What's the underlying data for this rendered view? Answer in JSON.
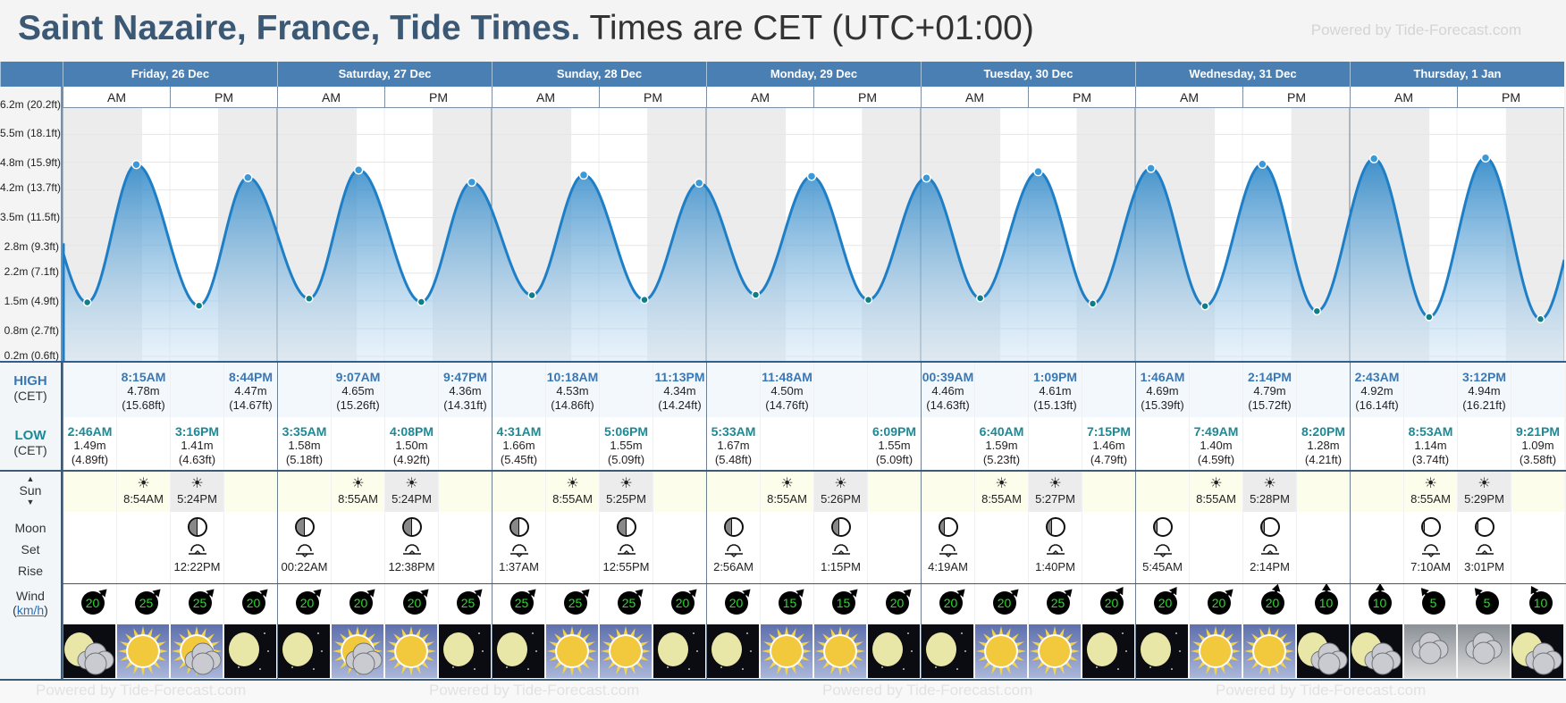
{
  "title": {
    "place": "Saint Nazaire, France, Tide Times.",
    "tz": "Times are CET (UTC+01:00)"
  },
  "powered_by": "Powered by Tide-Forecast.com",
  "periods": [
    "AM",
    "PM"
  ],
  "labels": {
    "high": "HIGH",
    "low": "LOW",
    "cet": "(CET)",
    "sun": "Sun",
    "moon": "Moon",
    "set": "Set",
    "rise": "Rise",
    "wind": "Wind",
    "unit": "km/h"
  },
  "chart": {
    "y_labels": [
      {
        "m": 0.2,
        "text": "0.2m (0.6ft)"
      },
      {
        "m": 0.8,
        "text": "0.8m (2.7ft)"
      },
      {
        "m": 1.5,
        "text": "1.5m (4.9ft)"
      },
      {
        "m": 2.2,
        "text": "2.2m (7.1ft)"
      },
      {
        "m": 2.8,
        "text": "2.8m (9.3ft)"
      },
      {
        "m": 3.5,
        "text": "3.5m (11.5ft)"
      },
      {
        "m": 4.2,
        "text": "4.2m (13.7ft)"
      },
      {
        "m": 4.8,
        "text": "4.8m (15.9ft)"
      },
      {
        "m": 5.5,
        "text": "5.5m (18.1ft)"
      },
      {
        "m": 6.2,
        "text": "6.2m (20.2ft)"
      }
    ],
    "colors": {
      "line": "#1e7fc6",
      "high_dot": "#3a9ad9",
      "low_dot": "#0e7f86"
    }
  },
  "days": [
    {
      "label": "Friday, 26 Dec",
      "high": [
        {
          "time": "8:15AM",
          "m": "4.78m",
          "ft": "(15.68ft)"
        },
        {
          "time": "8:44PM",
          "m": "4.47m",
          "ft": "(14.67ft)"
        }
      ],
      "low": [
        {
          "time": "2:46AM",
          "m": "1.49m",
          "ft": "(4.89ft)"
        },
        {
          "time": "3:16PM",
          "m": "1.41m",
          "ft": "(4.63ft)"
        }
      ],
      "sun": {
        "rise": "8:54AM",
        "set": "5:24PM"
      },
      "moon_shade": 0.5,
      "moon": [
        {
          "time": "12:22PM",
          "event": "rise"
        }
      ],
      "wind": [
        {
          "speed": "20",
          "dir_deg": 225
        },
        {
          "speed": "25",
          "dir_deg": 225
        },
        {
          "speed": "25",
          "dir_deg": 225
        },
        {
          "speed": "20",
          "dir_deg": 225
        }
      ],
      "weather": [
        "night-cloudy",
        "sunny",
        "sunny-cloudy",
        "night-clear"
      ]
    },
    {
      "label": "Saturday, 27 Dec",
      "high": [
        {
          "time": "9:07AM",
          "m": "4.65m",
          "ft": "(15.26ft)"
        },
        {
          "time": "9:47PM",
          "m": "4.36m",
          "ft": "(14.31ft)"
        }
      ],
      "low": [
        {
          "time": "3:35AM",
          "m": "1.58m",
          "ft": "(5.18ft)"
        },
        {
          "time": "4:08PM",
          "m": "1.50m",
          "ft": "(4.92ft)"
        }
      ],
      "sun": {
        "rise": "8:55AM",
        "set": "5:24PM"
      },
      "moon_shade": 0.5,
      "moon": [
        {
          "time": "00:22AM",
          "event": "set"
        },
        {
          "time": "12:38PM",
          "event": "rise"
        }
      ],
      "wind": [
        {
          "speed": "20",
          "dir_deg": 225
        },
        {
          "speed": "20",
          "dir_deg": 225
        },
        {
          "speed": "20",
          "dir_deg": 225
        },
        {
          "speed": "25",
          "dir_deg": 225
        }
      ],
      "weather": [
        "night-clear",
        "sunny-cloudy",
        "sunny",
        "night-clear"
      ]
    },
    {
      "label": "Sunday, 28 Dec",
      "high": [
        {
          "time": "10:18AM",
          "m": "4.53m",
          "ft": "(14.86ft)"
        },
        {
          "time": "11:13PM",
          "m": "4.34m",
          "ft": "(14.24ft)"
        }
      ],
      "low": [
        {
          "time": "4:31AM",
          "m": "1.66m",
          "ft": "(5.45ft)"
        },
        {
          "time": "5:06PM",
          "m": "1.55m",
          "ft": "(5.09ft)"
        }
      ],
      "sun": {
        "rise": "8:55AM",
        "set": "5:25PM"
      },
      "moon_shade": 0.5,
      "moon": [
        {
          "time": "1:37AM",
          "event": "set"
        },
        {
          "time": "12:55PM",
          "event": "rise"
        }
      ],
      "wind": [
        {
          "speed": "25",
          "dir_deg": 225
        },
        {
          "speed": "25",
          "dir_deg": 225
        },
        {
          "speed": "25",
          "dir_deg": 225
        },
        {
          "speed": "20",
          "dir_deg": 225
        }
      ],
      "weather": [
        "night-clear",
        "sunny",
        "sunny",
        "night-clear"
      ]
    },
    {
      "label": "Monday, 29 Dec",
      "high": [
        {
          "time": "11:48AM",
          "m": "4.50m",
          "ft": "(14.76ft)"
        }
      ],
      "low": [
        {
          "time": "5:33AM",
          "m": "1.67m",
          "ft": "(5.48ft)"
        },
        {
          "time": "6:09PM",
          "m": "1.55m",
          "ft": "(5.09ft)"
        }
      ],
      "sun": {
        "rise": "8:55AM",
        "set": "5:26PM"
      },
      "moon_shade": 0.4,
      "moon": [
        {
          "time": "2:56AM",
          "event": "set"
        },
        {
          "time": "1:15PM",
          "event": "rise"
        }
      ],
      "wind": [
        {
          "speed": "20",
          "dir_deg": 225
        },
        {
          "speed": "15",
          "dir_deg": 225
        },
        {
          "speed": "15",
          "dir_deg": 225
        },
        {
          "speed": "20",
          "dir_deg": 225
        }
      ],
      "weather": [
        "night-clear",
        "sunny",
        "sunny",
        "night-clear"
      ]
    },
    {
      "label": "Tuesday, 30 Dec",
      "high": [
        {
          "time": "00:39AM",
          "m": "4.46m",
          "ft": "(14.63ft)"
        },
        {
          "time": "1:09PM",
          "m": "4.61m",
          "ft": "(15.13ft)"
        }
      ],
      "low": [
        {
          "time": "6:40AM",
          "m": "1.59m",
          "ft": "(5.23ft)"
        },
        {
          "time": "7:15PM",
          "m": "1.46m",
          "ft": "(4.79ft)"
        }
      ],
      "sun": {
        "rise": "8:55AM",
        "set": "5:27PM"
      },
      "moon_shade": 0.3,
      "moon": [
        {
          "time": "4:19AM",
          "event": "set"
        },
        {
          "time": "1:40PM",
          "event": "rise"
        }
      ],
      "wind": [
        {
          "speed": "20",
          "dir_deg": 225
        },
        {
          "speed": "20",
          "dir_deg": 225
        },
        {
          "speed": "25",
          "dir_deg": 225
        },
        {
          "speed": "20",
          "dir_deg": 215
        }
      ],
      "weather": [
        "night-clear",
        "sunny",
        "sunny",
        "night-clear"
      ]
    },
    {
      "label": "Wednesday, 31 Dec",
      "high": [
        {
          "time": "1:46AM",
          "m": "4.69m",
          "ft": "(15.39ft)"
        },
        {
          "time": "2:14PM",
          "m": "4.79m",
          "ft": "(15.72ft)"
        }
      ],
      "low": [
        {
          "time": "7:49AM",
          "m": "1.40m",
          "ft": "(4.59ft)"
        },
        {
          "time": "8:20PM",
          "m": "1.28m",
          "ft": "(4.21ft)"
        }
      ],
      "sun": {
        "rise": "8:55AM",
        "set": "5:28PM"
      },
      "moon_shade": 0.2,
      "moon": [
        {
          "time": "5:45AM",
          "event": "set"
        },
        {
          "time": "2:14PM",
          "event": "rise"
        }
      ],
      "wind": [
        {
          "speed": "20",
          "dir_deg": 215
        },
        {
          "speed": "20",
          "dir_deg": 225
        },
        {
          "speed": "20",
          "dir_deg": 195
        },
        {
          "speed": "10",
          "dir_deg": 180
        }
      ],
      "weather": [
        "night-clear",
        "sunny",
        "sunny",
        "night-cloudy"
      ]
    },
    {
      "label": "Thursday, 1 Jan",
      "high": [
        {
          "time": "2:43AM",
          "m": "4.92m",
          "ft": "(16.14ft)"
        },
        {
          "time": "3:12PM",
          "m": "4.94m",
          "ft": "(16.21ft)"
        }
      ],
      "low": [
        {
          "time": "8:53AM",
          "m": "1.14m",
          "ft": "(3.74ft)"
        },
        {
          "time": "9:21PM",
          "m": "1.09m",
          "ft": "(3.58ft)"
        }
      ],
      "sun": {
        "rise": "8:55AM",
        "set": "5:29PM"
      },
      "moon_shade": 0.15,
      "moon": [
        {
          "time": "7:10AM",
          "event": "set"
        },
        {
          "time": "3:01PM",
          "event": "rise"
        }
      ],
      "wind": [
        {
          "speed": "10",
          "dir_deg": 180
        },
        {
          "speed": "5",
          "dir_deg": 140
        },
        {
          "speed": "5",
          "dir_deg": 140
        },
        {
          "speed": "10",
          "dir_deg": 150
        }
      ],
      "weather": [
        "night-cloudy",
        "cloudy",
        "cloudy",
        "night-cloudy"
      ]
    }
  ]
}
